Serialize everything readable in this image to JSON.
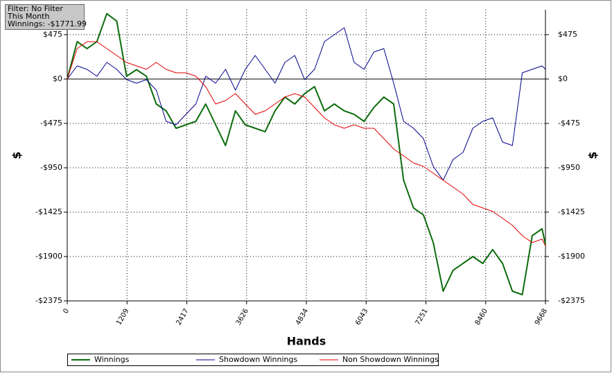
{
  "chart_data": {
    "type": "line",
    "annotations": [
      "Filter: No Filter",
      "This Month",
      "Winnings: -$1771.99"
    ],
    "xlabel": "Hands",
    "ylabel": "$",
    "xlim": [
      0,
      9668
    ],
    "xticks": [
      0,
      1209,
      2417,
      3626,
      4834,
      6043,
      7251,
      8460,
      9668
    ],
    "ylim": [
      -2375,
      742
    ],
    "yticks": [
      {
        "value": 475,
        "label": "$475"
      },
      {
        "value": 0,
        "label": "$0"
      },
      {
        "value": -475,
        "label": "-$475"
      },
      {
        "value": -950,
        "label": "-$950"
      },
      {
        "value": -1425,
        "label": "-$1425"
      },
      {
        "value": -1900,
        "label": "-$1900"
      },
      {
        "value": -2375,
        "label": "-$2375"
      }
    ],
    "grid": true,
    "x": [
      0,
      200,
      400,
      600,
      800,
      1000,
      1200,
      1400,
      1600,
      1800,
      2000,
      2200,
      2400,
      2600,
      2800,
      3000,
      3200,
      3400,
      3600,
      3800,
      4000,
      4200,
      4400,
      4600,
      4800,
      5000,
      5200,
      5400,
      5600,
      5800,
      6000,
      6200,
      6400,
      6600,
      6800,
      7000,
      7200,
      7400,
      7600,
      7800,
      8000,
      8200,
      8400,
      8600,
      8800,
      9000,
      9200,
      9400,
      9600,
      9668
    ],
    "series": [
      {
        "name": "Winnings",
        "color": "#0b6b0b",
        "width": 2,
        "values": [
          0,
          400,
          326,
          400,
          700,
          620,
          30,
          100,
          30,
          -267,
          -341,
          -527,
          -490,
          -453,
          -267,
          -490,
          -712,
          -341,
          -490,
          -527,
          -564,
          -341,
          -193,
          -267,
          -156,
          -82,
          -341,
          -267,
          -341,
          -378,
          -453,
          -304,
          -193,
          -267,
          -1083,
          -1380,
          -1454,
          -1751,
          -2271,
          -2048,
          -1974,
          -1900,
          -1974,
          -1825,
          -1974,
          -2271,
          -2308,
          -1677,
          -1603,
          -1772
        ]
      },
      {
        "name": "Showdown Winnings",
        "color": "#00008b",
        "width": 1,
        "values": [
          0,
          141,
          104,
          30,
          178,
          104,
          -7,
          -45,
          -7,
          -119,
          -453,
          -490,
          -378,
          -267,
          30,
          -45,
          104,
          -119,
          104,
          252,
          104,
          -45,
          178,
          252,
          -7,
          104,
          400,
          475,
          549,
          178,
          104,
          289,
          326,
          -45,
          -453,
          -527,
          -638,
          -935,
          -1083,
          -861,
          -786,
          -527,
          -453,
          -416,
          -675,
          -712,
          67,
          104,
          141,
          104
        ]
      },
      {
        "name": "Non Showdown Winnings",
        "color": "#e00000",
        "width": 1,
        "values": [
          0,
          326,
          400,
          400,
          326,
          252,
          178,
          141,
          104,
          178,
          104,
          67,
          67,
          30,
          -82,
          -267,
          -230,
          -156,
          -267,
          -378,
          -341,
          -267,
          -193,
          -156,
          -193,
          -304,
          -416,
          -490,
          -527,
          -490,
          -527,
          -527,
          -638,
          -749,
          -823,
          -898,
          -935,
          -1009,
          -1083,
          -1157,
          -1231,
          -1343,
          -1380,
          -1417,
          -1491,
          -1566,
          -1677,
          -1751,
          -1714,
          -1788
        ]
      }
    ]
  }
}
